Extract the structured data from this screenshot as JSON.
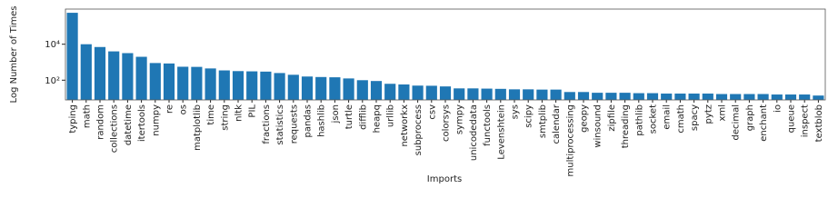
{
  "chart_data": {
    "type": "bar",
    "log_y": true,
    "color": "#1f77b4",
    "x_label": "Imports",
    "y_label": "Log Number of Times",
    "categories": [
      "typing",
      "math",
      "random",
      "collections",
      "datetime",
      "itertools",
      "numpy",
      "re",
      "os",
      "matplotlib",
      "time",
      "string",
      "nltk",
      "PIL",
      "fractions",
      "statistics",
      "requests",
      "pandas",
      "hashlib",
      "json",
      "turtle",
      "difflib",
      "heapq",
      "urllib",
      "networkx",
      "subprocess",
      "csv",
      "colorsys",
      "sympy",
      "unicodedata",
      "functools",
      "Levenshtein",
      "sys",
      "scipy",
      "smtplib",
      "calendar",
      "multiprocessing",
      "geopy",
      "winsound",
      "zipfile",
      "threading",
      "pathlib",
      "socket",
      "email",
      "cmath",
      "spacy",
      "pytz",
      "xml",
      "decimal",
      "graph",
      "enchant",
      "io",
      "queue",
      "inspect",
      "textblob"
    ],
    "values": [
      560000,
      10000,
      7000,
      4000,
      3200,
      2000,
      900,
      850,
      560,
      550,
      450,
      350,
      320,
      310,
      300,
      250,
      200,
      160,
      150,
      145,
      125,
      100,
      90,
      63,
      58,
      50,
      49,
      45,
      35,
      35,
      34,
      33,
      31,
      31,
      30,
      30,
      22,
      22,
      20,
      20,
      20,
      19,
      19,
      18,
      18,
      18,
      18,
      17,
      17,
      17,
      17,
      16,
      16,
      16,
      14
    ],
    "ylim": [
      8,
      900000
    ],
    "yticks": [
      {
        "value": 100,
        "label": "10²"
      },
      {
        "value": 10000,
        "label": "10⁴"
      }
    ]
  }
}
